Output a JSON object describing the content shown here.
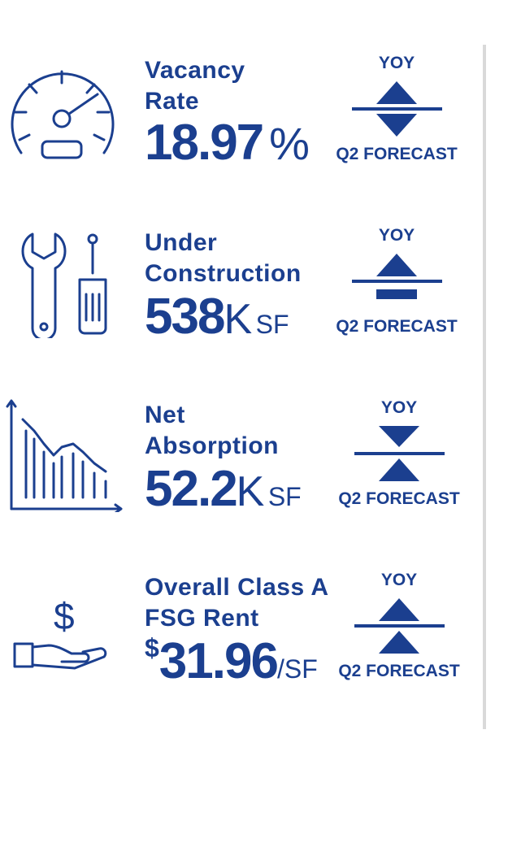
{
  "metrics": [
    {
      "label_line1": "Vacancy",
      "label_line2": "Rate",
      "value": "18.97",
      "unit": "%",
      "icon": "speedometer-icon",
      "yoy_label": "YOY",
      "forecast_label": "Q2 FORECAST",
      "yoy_direction": "up",
      "forecast_direction": "down"
    },
    {
      "label_line1": "Under",
      "label_line2": "Construction",
      "value": "538",
      "unit_main": "K",
      "unit_sub": "SF",
      "icon": "wrench-screwdriver-icon",
      "yoy_label": "YOY",
      "forecast_label": "Q2 FORECAST",
      "yoy_direction": "up",
      "forecast_direction": "flat"
    },
    {
      "label_line1": "Net",
      "label_line2": "Absorption",
      "value": "52.2",
      "unit_main": "K",
      "unit_sub": "SF",
      "icon": "declining-bar-chart-icon",
      "yoy_label": "YOY",
      "forecast_label": "Q2 FORECAST",
      "yoy_direction": "down",
      "forecast_direction": "up"
    },
    {
      "label_line1": "Overall Class A",
      "label_line2": "FSG Rent",
      "currency": "$",
      "value": "31.96",
      "unit_sub": "/SF",
      "icon": "hand-dollar-icon",
      "yoy_label": "YOY",
      "forecast_label": "Q2 FORECAST",
      "yoy_direction": "up",
      "forecast_direction": "up"
    }
  ],
  "colors": {
    "brand": "#1b3f8f",
    "divider": "#d9d9d9"
  }
}
